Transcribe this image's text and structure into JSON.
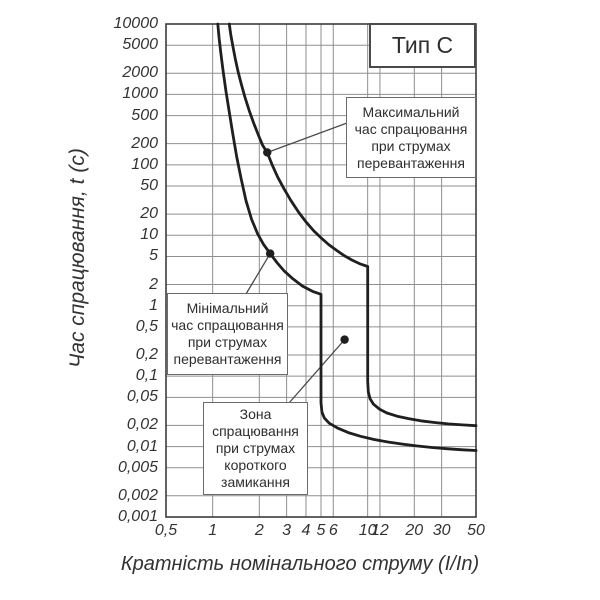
{
  "chart_data": {
    "type": "line",
    "title": "Тип С",
    "x_axis": {
      "label": "Кратність номінального струму (I/In)",
      "scale": "log",
      "range": [
        0.5,
        50
      ],
      "tick_values": [
        0.5,
        1,
        2,
        3,
        4,
        5,
        6,
        10,
        12,
        20,
        30,
        50
      ],
      "tick_labels": [
        "0,5",
        "1",
        "2",
        "3",
        "4",
        "5",
        "6",
        "10",
        "12",
        "20",
        "30",
        "50"
      ]
    },
    "y_axis": {
      "label": "Час спрацювання, t (с)",
      "scale": "log",
      "range": [
        0.001,
        10000
      ],
      "tick_values": [
        10000,
        5000,
        2000,
        1000,
        500,
        200,
        100,
        50,
        20,
        10,
        5,
        2,
        1,
        0.5,
        0.2,
        0.1,
        0.05,
        0.02,
        0.01,
        0.005,
        0.002,
        0.001
      ],
      "tick_labels": [
        "10000",
        "5000",
        "2000",
        "1000",
        "500",
        "200",
        "100",
        "50",
        "20",
        "10",
        "5",
        "2",
        "1",
        "0,5",
        "0,2",
        "0,1",
        "0,05",
        "0,02",
        "0,01",
        "0,005",
        "0,002",
        "0,001"
      ]
    },
    "grid": true,
    "legend": false,
    "series": [
      {
        "name": "Максимальний час спрацювання",
        "points": [
          [
            1.28,
            10000
          ],
          [
            1.31,
            7000
          ],
          [
            1.35,
            4800
          ],
          [
            1.4,
            3200
          ],
          [
            1.46,
            2100
          ],
          [
            1.53,
            1400
          ],
          [
            1.62,
            900
          ],
          [
            1.72,
            590
          ],
          [
            1.84,
            390
          ],
          [
            1.98,
            260
          ],
          [
            2.1,
            190
          ],
          [
            2.25,
            150
          ],
          [
            2.42,
            100
          ],
          [
            2.62,
            68
          ],
          [
            2.9,
            45
          ],
          [
            3.2,
            31
          ],
          [
            3.6,
            21
          ],
          [
            4.0,
            15.5
          ],
          [
            4.5,
            11.5
          ],
          [
            5.0,
            9.2
          ],
          [
            5.6,
            7.4
          ],
          [
            6.3,
            6.1
          ],
          [
            7.1,
            5.1
          ],
          [
            8.0,
            4.4
          ],
          [
            9.0,
            3.9
          ],
          [
            10,
            3.6
          ],
          [
            10,
            0.085
          ],
          [
            10.1,
            0.06
          ],
          [
            10.35,
            0.048
          ],
          [
            10.9,
            0.04
          ],
          [
            11.9,
            0.034
          ],
          [
            13.3,
            0.03
          ],
          [
            15.5,
            0.027
          ],
          [
            18.5,
            0.0248
          ],
          [
            22,
            0.0232
          ],
          [
            27,
            0.022
          ],
          [
            33,
            0.021
          ],
          [
            41,
            0.0203
          ],
          [
            50,
            0.0198
          ]
        ]
      },
      {
        "name": "Мінімальний час спрацювання",
        "points": [
          [
            1.08,
            10000
          ],
          [
            1.1,
            6300
          ],
          [
            1.13,
            3800
          ],
          [
            1.17,
            2100
          ],
          [
            1.22,
            1100
          ],
          [
            1.28,
            560
          ],
          [
            1.35,
            270
          ],
          [
            1.43,
            130
          ],
          [
            1.53,
            62
          ],
          [
            1.64,
            31
          ],
          [
            1.78,
            17
          ],
          [
            1.95,
            10.5
          ],
          [
            2.13,
            7.4
          ],
          [
            2.35,
            5.5
          ],
          [
            2.6,
            4.1
          ],
          [
            2.9,
            3.1
          ],
          [
            3.3,
            2.4
          ],
          [
            3.8,
            1.9
          ],
          [
            4.4,
            1.6
          ],
          [
            5.0,
            1.45
          ],
          [
            5.0,
            0.042
          ],
          [
            5.07,
            0.031
          ],
          [
            5.25,
            0.0255
          ],
          [
            5.65,
            0.0215
          ],
          [
            6.4,
            0.0183
          ],
          [
            7.5,
            0.0158
          ],
          [
            9.0,
            0.014
          ],
          [
            11,
            0.0126
          ],
          [
            13.5,
            0.0116
          ],
          [
            17,
            0.0108
          ],
          [
            21,
            0.0102
          ],
          [
            26,
            0.0097
          ],
          [
            33,
            0.0093
          ],
          [
            41,
            0.009
          ],
          [
            50,
            0.0088
          ]
        ]
      }
    ],
    "annotations": {
      "type_label": {
        "text": "Тип С"
      },
      "max_note": {
        "lines": [
          "Максимальний",
          "час спрацювання",
          "при струмах",
          "перевантаження"
        ],
        "dot": [
          2.25,
          150
        ]
      },
      "min_note": {
        "lines": [
          "Мінімальний",
          "час спрацювання",
          "при струмах",
          "перевантаження"
        ],
        "dot": [
          2.35,
          5.5
        ]
      },
      "zone_note": {
        "lines": [
          "Зона",
          "спрацювання",
          "при струмах",
          "короткого",
          "замикання"
        ],
        "dot": [
          7.1,
          0.33
        ]
      }
    },
    "colors": {
      "curve": "#1f1f1f",
      "grid": "#8f8f8f",
      "frame": "#3c3c3c",
      "text": "#333333",
      "annotation_border": "#6b6b6b",
      "background": "#ffffff"
    }
  }
}
